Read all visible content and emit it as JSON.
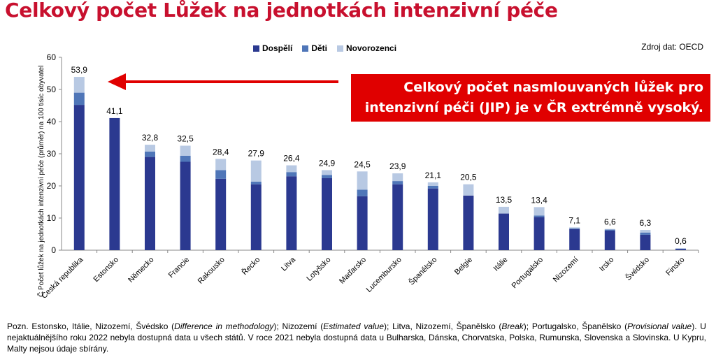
{
  "title": "Celkový počet Lůžek na jednotkách intenzivní péče",
  "source": "Zdroj dat: OECD",
  "callout": {
    "line1": "Celkový počet nasmlouvaných lůžek pro",
    "line2": "intenzivní péči (JIP) je v ČR extrémně vysoký."
  },
  "colors": {
    "adults": "#2b3990",
    "children": "#4f76b8",
    "newborns": "#b8c9e3",
    "accent": "#e00000"
  },
  "chart_data": {
    "type": "bar",
    "stacked": true,
    "ylabel": "Č Počet lůžek na jednotkách intenzivní péče (průměr) na 100 tisíc obyvatel",
    "ylim": [
      0,
      60
    ],
    "yticks": [
      0,
      10,
      20,
      30,
      40,
      50,
      60
    ],
    "legend": [
      "Dospělí",
      "Děti",
      "Novorozenci"
    ],
    "categories": [
      "Česká republika",
      "Estonsko",
      "Německo",
      "Francie",
      "Rakousko",
      "Řecko",
      "Litva",
      "Lotyšsko",
      "Maďarsko",
      "Lucembursko",
      "Španělsko",
      "Belgie",
      "Itálie",
      "Portugalsko",
      "Nizozemí",
      "Irsko",
      "Švédsko",
      "Finsko"
    ],
    "series": [
      {
        "name": "Dospělí",
        "values": [
          45.2,
          41.1,
          29.0,
          27.5,
          22.2,
          20.5,
          23.0,
          22.4,
          16.8,
          20.5,
          19.2,
          17.0,
          11.4,
          10.3,
          6.6,
          6.1,
          4.8,
          0.4
        ]
      },
      {
        "name": "Děti",
        "values": [
          3.8,
          0.0,
          1.7,
          1.9,
          2.7,
          0.8,
          1.3,
          1.0,
          2.0,
          1.0,
          0.8,
          0.0,
          0.0,
          0.5,
          0.2,
          0.3,
          0.7,
          0.1
        ]
      },
      {
        "name": "Novorozenci",
        "values": [
          4.9,
          0.0,
          2.1,
          3.1,
          3.5,
          6.6,
          2.1,
          1.5,
          5.7,
          2.4,
          1.1,
          3.5,
          2.1,
          2.6,
          0.3,
          0.2,
          0.8,
          0.1
        ]
      }
    ],
    "totals": [
      "53,9",
      "41,1",
      "32,8",
      "32,5",
      "28,4",
      "27,9",
      "26,4",
      "24,9",
      "24,5",
      "23,9",
      "21,1",
      "20,5",
      "13,5",
      "13,4",
      "7,1",
      "6,6",
      "6,3",
      "0,6"
    ]
  },
  "note": {
    "p1": "Pozn. Estonsko, Itálie, Nizozemí, Švédsko (",
    "i1": "Difference in methodology",
    "p2": "); Nizozemí (",
    "i2": "Estimated value",
    "p3": "); Litva, Nizozemí, Španělsko (",
    "i3": "Break",
    "p4": "); Portugalsko, Španělsko (",
    "i4": "Provisional value",
    "p5": "). U nejaktuálnějšího roku 2022 nebyla dostupná data u všech států. V roce 2021 nebyla dostupná data u Bulharska, Dánska, Chorvatska, Polska, Rumunska, Slovenska a Slovinska. U Kypru, Malty nejsou údaje sbírány."
  }
}
